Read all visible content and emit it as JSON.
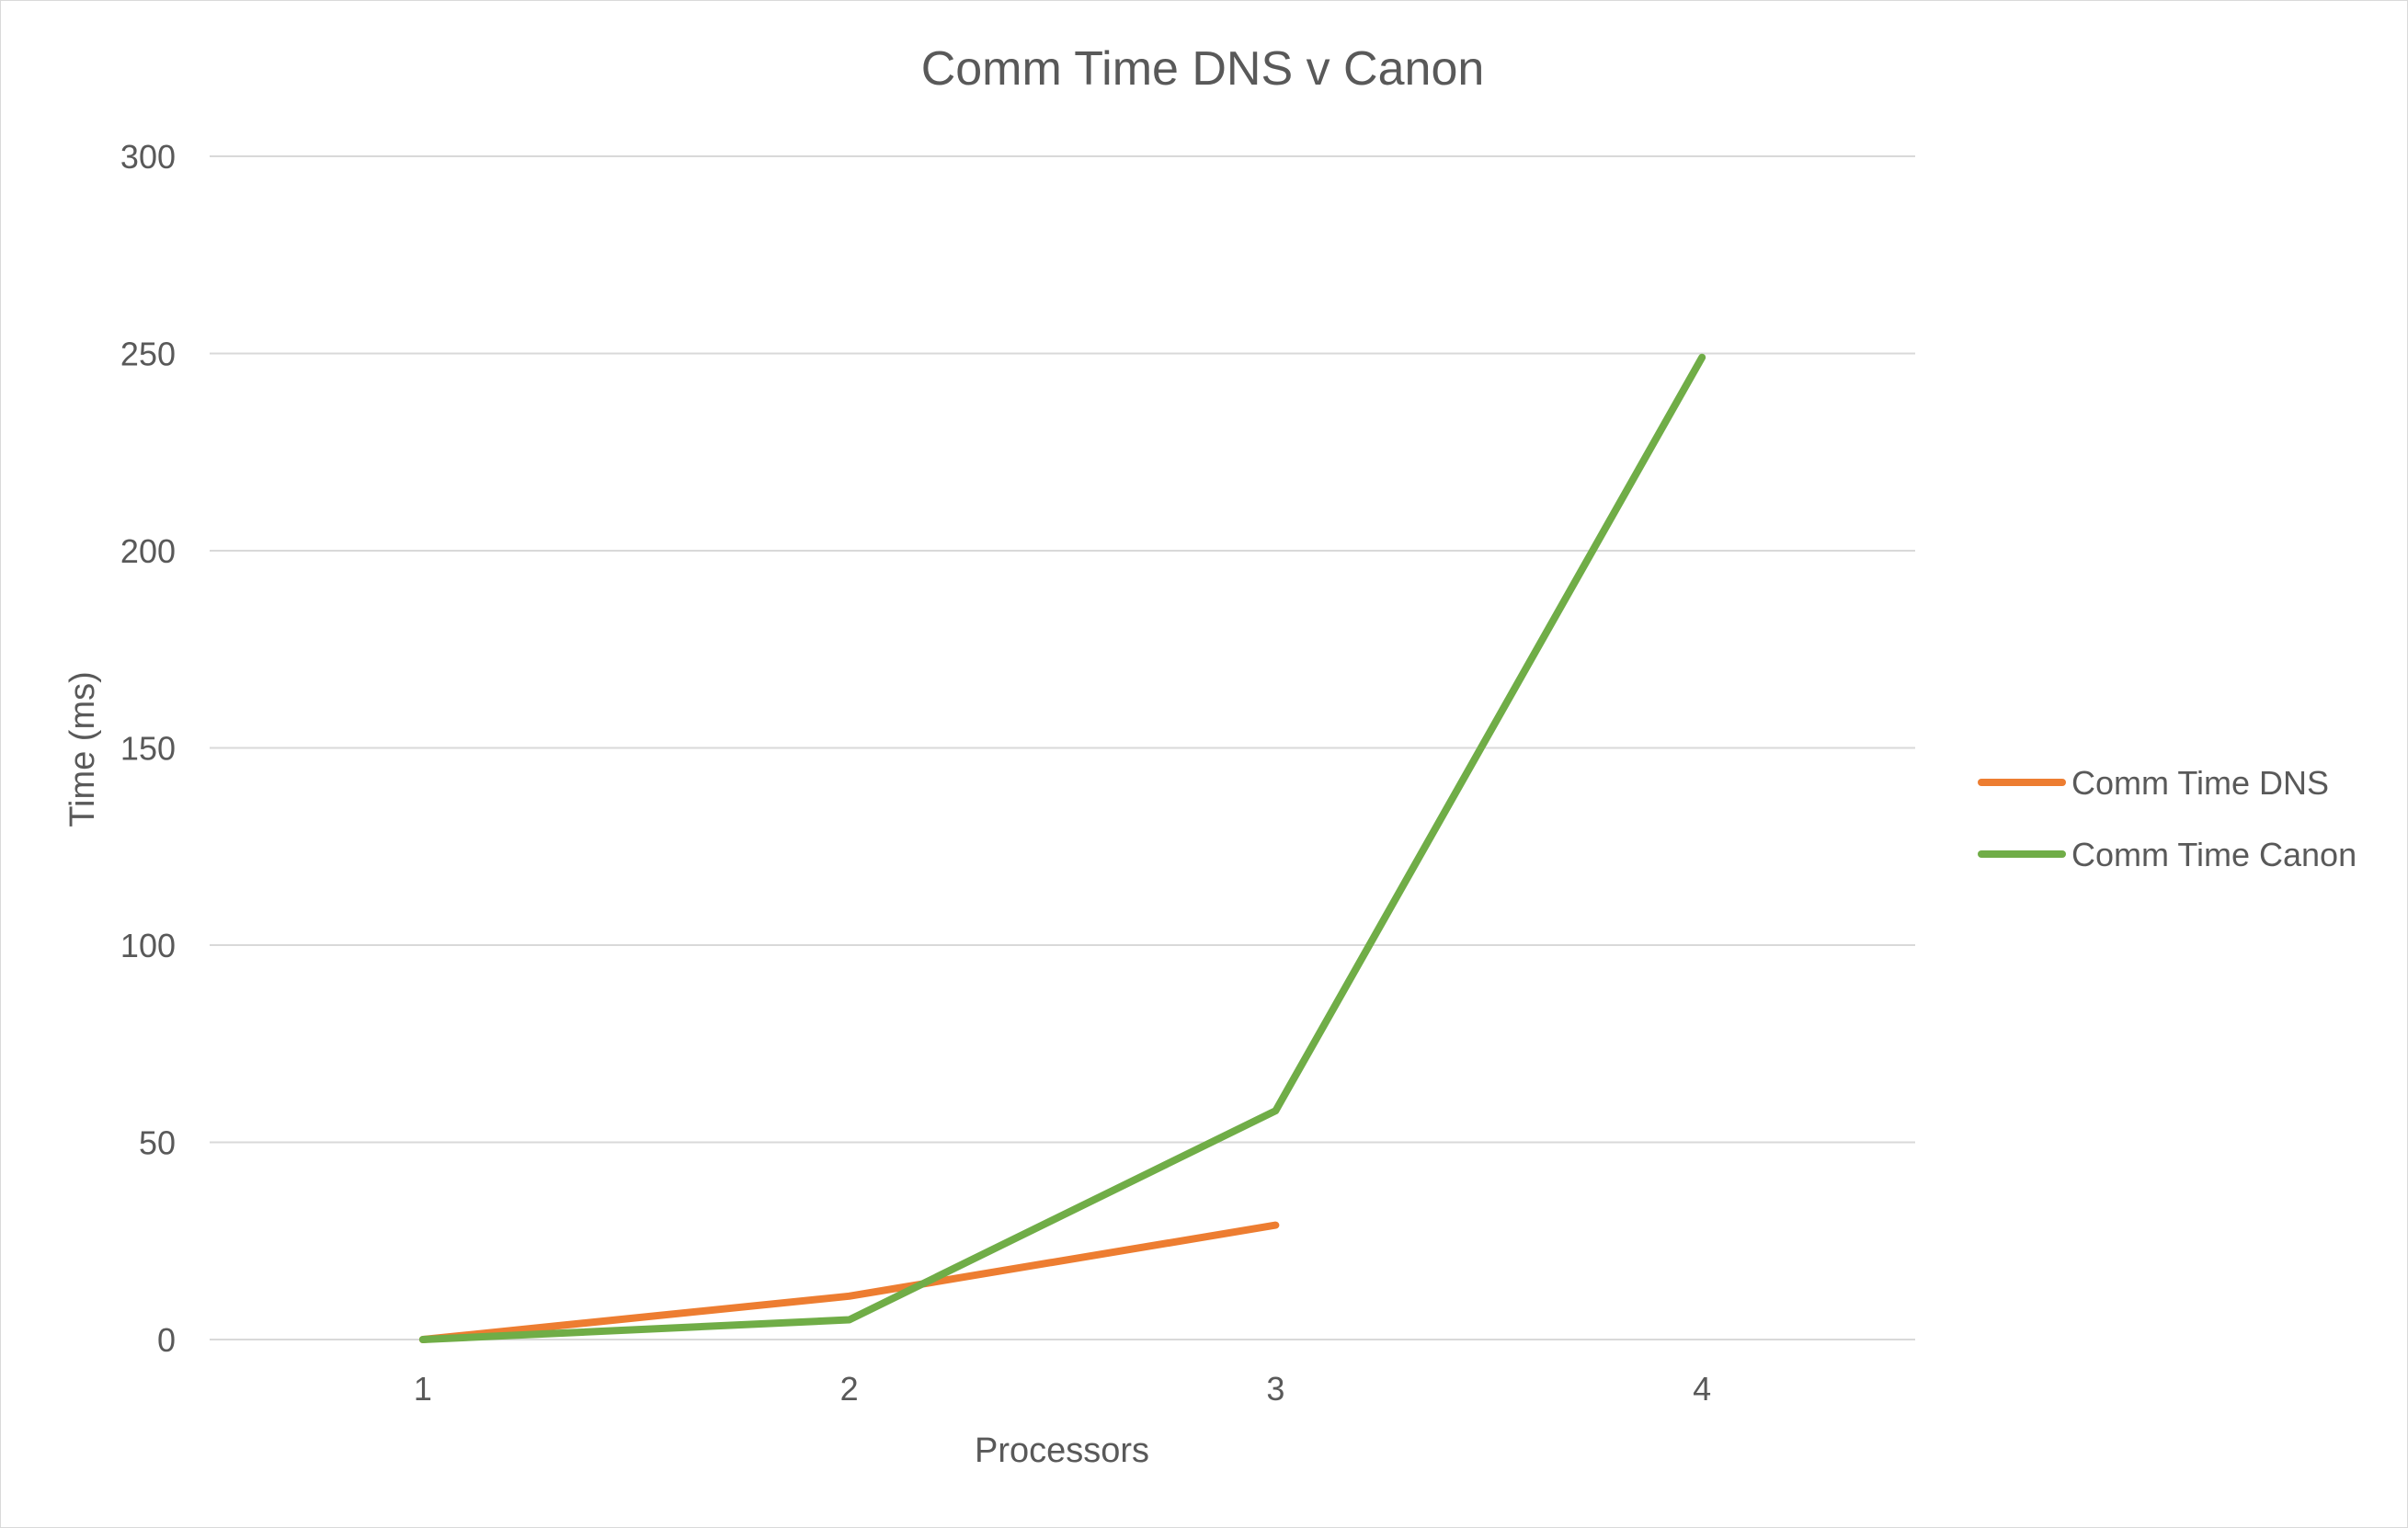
{
  "chart_data": {
    "type": "line",
    "title": "Comm Time DNS v Canon",
    "xlabel": "Processors",
    "ylabel": "Time (ms)",
    "categories": [
      "1",
      "2",
      "3",
      "4"
    ],
    "ylim": [
      0,
      300
    ],
    "yticks": [
      "0",
      "50",
      "100",
      "150",
      "200",
      "250",
      "300"
    ],
    "grid": true,
    "legend_position": "right",
    "series": [
      {
        "name": "Comm Time DNS",
        "color": "#ED7D31",
        "values": [
          0,
          11,
          29,
          null
        ]
      },
      {
        "name": "Comm Time Canon",
        "color": "#70AD47",
        "values": [
          0,
          5,
          58,
          249
        ]
      }
    ]
  }
}
